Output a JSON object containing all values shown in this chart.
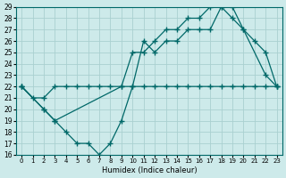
{
  "xlabel": "Humidex (Indice chaleur)",
  "background_color": "#cdeaea",
  "grid_color": "#aad0d0",
  "line_color": "#006868",
  "xlim": [
    -0.5,
    23.5
  ],
  "ylim": [
    16,
    29
  ],
  "xticks": [
    0,
    1,
    2,
    3,
    4,
    5,
    6,
    7,
    8,
    9,
    10,
    11,
    12,
    13,
    14,
    15,
    16,
    17,
    18,
    19,
    20,
    21,
    22,
    23
  ],
  "yticks": [
    16,
    17,
    18,
    19,
    20,
    21,
    22,
    23,
    24,
    25,
    26,
    27,
    28,
    29
  ],
  "line1_x": [
    0,
    1,
    2,
    3,
    4,
    5,
    6,
    7,
    8,
    9,
    10,
    11,
    12,
    13,
    14,
    15,
    16,
    17,
    18,
    19,
    20,
    21,
    22,
    23
  ],
  "line1_y": [
    22,
    21,
    21,
    22,
    22,
    22,
    22,
    22,
    22,
    22,
    22,
    22,
    22,
    22,
    22,
    22,
    22,
    22,
    22,
    22,
    22,
    22,
    22,
    22
  ],
  "line2_x": [
    0,
    2,
    3,
    4,
    5,
    6,
    7,
    8,
    9,
    10,
    11,
    12,
    13,
    14,
    15,
    16,
    17,
    18,
    19,
    20,
    22,
    23
  ],
  "line2_y": [
    22,
    20,
    19,
    18,
    17,
    17,
    16,
    17,
    19,
    22,
    26,
    25,
    26,
    26,
    27,
    27,
    27,
    29,
    29,
    27,
    23,
    22
  ],
  "line3_x": [
    0,
    2,
    3,
    9,
    10,
    11,
    12,
    13,
    14,
    15,
    16,
    17,
    18,
    19,
    20,
    21,
    22,
    23
  ],
  "line3_y": [
    22,
    20,
    19,
    22,
    25,
    25,
    26,
    27,
    27,
    28,
    28,
    29,
    29,
    28,
    27,
    26,
    25,
    22
  ]
}
